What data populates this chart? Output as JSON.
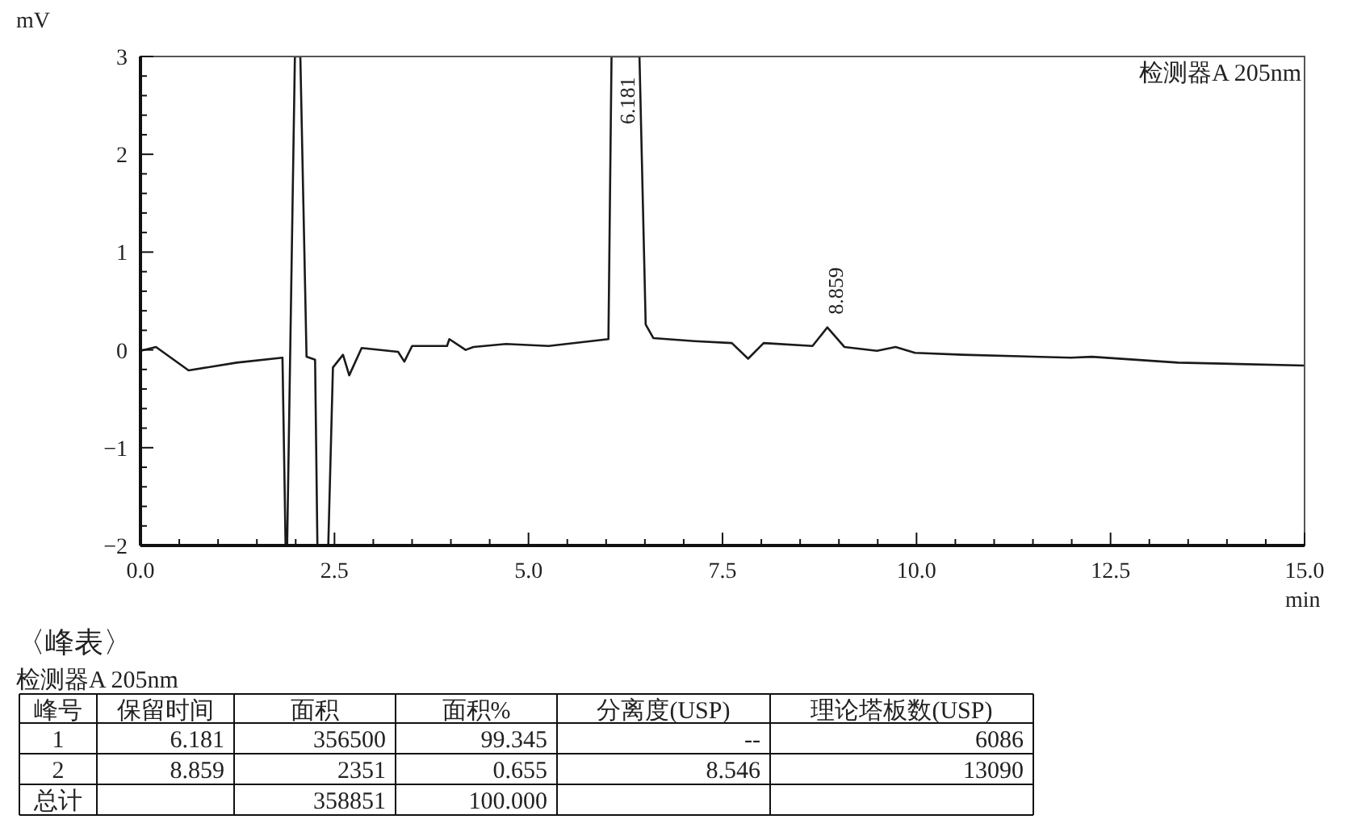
{
  "chart_data": {
    "type": "line",
    "xlabel": "min",
    "ylabel": "mV",
    "x": [
      0.0,
      0.2,
      0.62,
      1.24,
      1.83,
      1.87,
      1.89,
      1.99,
      2.06,
      2.14,
      2.25,
      2.28,
      2.42,
      2.48,
      2.61,
      2.69,
      2.85,
      3.32,
      3.4,
      3.5,
      3.95,
      3.98,
      4.19,
      4.29,
      4.71,
      5.26,
      6.03,
      6.07,
      6.43,
      6.51,
      6.61,
      7.14,
      7.62,
      7.83,
      8.03,
      8.66,
      8.85,
      9.07,
      9.49,
      9.73,
      9.98,
      10.6,
      11.99,
      12.26,
      13.37,
      15.0
    ],
    "series": [
      {
        "color": "#1a1a1a",
        "values": [
          -0.01,
          0.03,
          -0.21,
          -0.13,
          -0.08,
          -2,
          -2,
          3,
          3,
          -0.07,
          -0.1,
          -2,
          -2,
          -0.18,
          -0.05,
          -0.26,
          0.02,
          -0.02,
          -0.12,
          0.04,
          0.04,
          0.11,
          0.0,
          0.03,
          0.06,
          0.04,
          0.11,
          3,
          3,
          0.26,
          0.12,
          0.09,
          0.07,
          -0.09,
          0.07,
          0.04,
          0.23,
          0.03,
          -0.01,
          0.03,
          -0.03,
          -0.05,
          -0.08,
          -0.07,
          -0.13,
          -0.16
        ]
      }
    ],
    "xlim": [
      0,
      15
    ],
    "ylim": [
      -2,
      3
    ],
    "xticks": [
      {
        "value": 0,
        "label": "0.0"
      },
      {
        "value": 2.5,
        "label": "2.5"
      },
      {
        "value": 5,
        "label": "5.0"
      },
      {
        "value": 7.5,
        "label": "7.5"
      },
      {
        "value": 10,
        "label": "10.0"
      },
      {
        "value": 12.5,
        "label": "12.5"
      },
      {
        "value": 15,
        "label": "15.0"
      }
    ],
    "yticks": [
      {
        "value": -2,
        "label": "−2"
      },
      {
        "value": -1,
        "label": "−1"
      },
      0,
      1,
      2,
      3
    ],
    "marker": "none",
    "line_style": "solid",
    "annotations": [
      "检测器A 205nm",
      "〈峰表〉",
      "检测器A 205nm",
      {
        "text": "6.181",
        "x": 6.181,
        "y": 3
      },
      {
        "text": "8.859",
        "x": 8.859,
        "y": 0.23
      },
      "峰号",
      "保留时间",
      "面积",
      "面积%",
      "分离度(USP)",
      "理论塔板数(USP)",
      "1",
      "6.181",
      "356500",
      "99.345",
      "--",
      "6086",
      "2",
      "8.859",
      "2351",
      "0.655",
      "8.546",
      "13090",
      "总计",
      "358851",
      "100.000"
    ]
  }
}
